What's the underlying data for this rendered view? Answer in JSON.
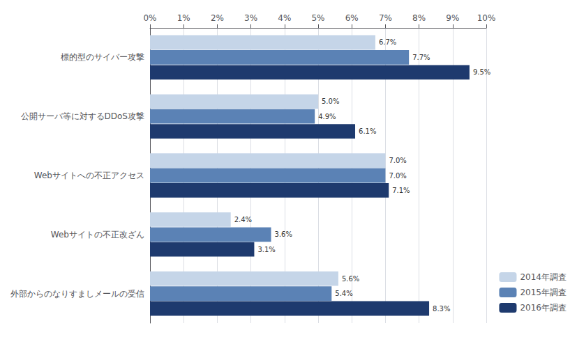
{
  "chart_data": {
    "type": "bar",
    "orientation": "horizontal",
    "categories": [
      "標的型のサイバー攻撃",
      "公開サーバ等に対するDDoS攻撃",
      "Webサイトへの不正アクセス",
      "Webサイトの不正改ざん",
      "外部からのなりすましメールの受信"
    ],
    "series": [
      {
        "name": "2014年調査",
        "color": "#c5d5e8",
        "values": [
          6.7,
          5.0,
          7.0,
          2.4,
          5.6
        ],
        "value_labels": [
          "6.7%",
          "5.0%",
          "7.0%",
          "2.4%",
          "5.6%"
        ]
      },
      {
        "name": "2015年調査",
        "color": "#5b82b5",
        "values": [
          7.7,
          4.9,
          7.0,
          3.6,
          5.4
        ],
        "value_labels": [
          "7.7%",
          "4.9%",
          "7.0%",
          "3.6%",
          "5.4%"
        ]
      },
      {
        "name": "2016年調査",
        "color": "#1e3a6e",
        "values": [
          9.5,
          6.1,
          7.1,
          3.1,
          8.3
        ],
        "value_labels": [
          "9.5%",
          "6.1%",
          "7.1%",
          "3.1%",
          "8.3%"
        ]
      }
    ],
    "xlim": [
      0,
      10
    ],
    "xticks": [
      {
        "value": 0,
        "label": "0%"
      },
      {
        "value": 1,
        "label": "1%"
      },
      {
        "value": 2,
        "label": "2%"
      },
      {
        "value": 3,
        "label": "3%"
      },
      {
        "value": 4,
        "label": "4%"
      },
      {
        "value": 5,
        "label": "5%"
      },
      {
        "value": 6,
        "label": "6%"
      },
      {
        "value": 7,
        "label": "7%"
      },
      {
        "value": 8,
        "label": "8%"
      },
      {
        "value": 9,
        "label": "9%"
      },
      {
        "value": 10,
        "label": "10%"
      }
    ],
    "grid": true,
    "legend": "lower right",
    "data_labels": true
  }
}
